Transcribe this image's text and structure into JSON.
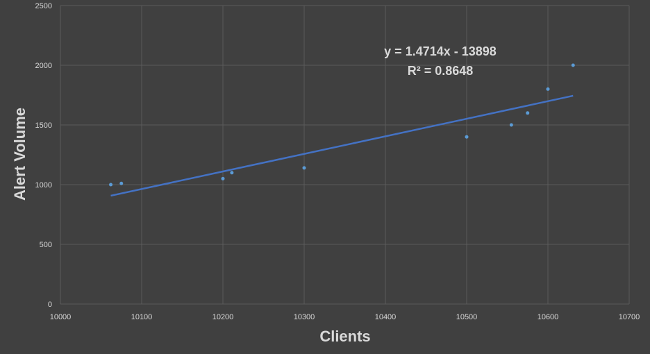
{
  "chart_data": {
    "type": "scatter",
    "xlabel": "Clients",
    "ylabel": "Alert Volume",
    "xlim": [
      10000,
      10700
    ],
    "ylim": [
      0,
      2500
    ],
    "x_ticks": [
      "10000",
      "10100",
      "10200",
      "10300",
      "10400",
      "10500",
      "10600",
      "10700"
    ],
    "y_ticks": [
      "0",
      "500",
      "1000",
      "1500",
      "2000",
      "2500"
    ],
    "grid": true,
    "points": [
      {
        "x": 10062,
        "y": 1000
      },
      {
        "x": 10075,
        "y": 1010
      },
      {
        "x": 10200,
        "y": 1050
      },
      {
        "x": 10211,
        "y": 1100
      },
      {
        "x": 10300,
        "y": 1140
      },
      {
        "x": 10500,
        "y": 1400
      },
      {
        "x": 10555,
        "y": 1500
      },
      {
        "x": 10575,
        "y": 1600
      },
      {
        "x": 10600,
        "y": 1800
      },
      {
        "x": 10631,
        "y": 2000
      }
    ],
    "trendline": {
      "type": "linear",
      "equation": "y = 1.4714x - 13898",
      "r_squared": "R² = 0.8648",
      "slope": 1.4714,
      "intercept": -13898
    },
    "colors": {
      "background": "#404040",
      "grid": "#5a5a5a",
      "point": "#5b9bd5",
      "trendline": "#4472c4",
      "text": "#d9d9d9"
    }
  }
}
